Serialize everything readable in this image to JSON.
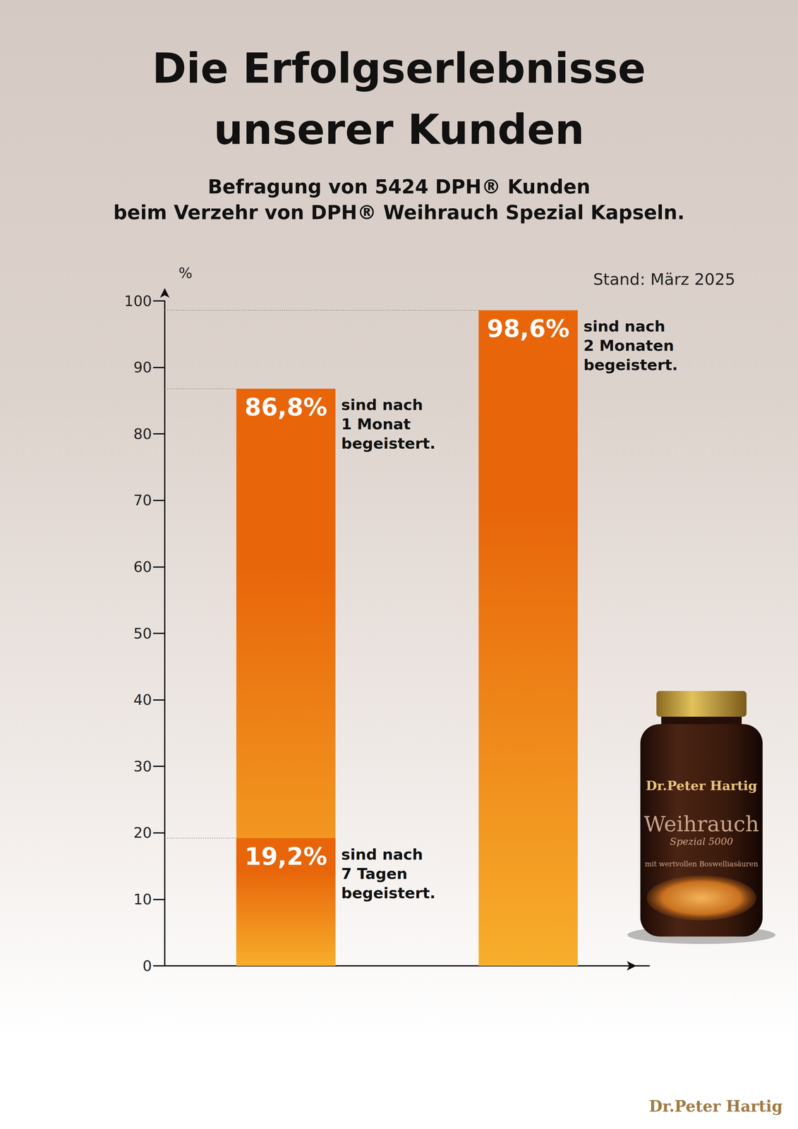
{
  "chart_data": {
    "type": "bar",
    "title": [
      "Die Erfolgserlebnisse",
      "unserer Kunden"
    ],
    "subtitle": [
      "Befragung von 5424 DPH® Kunden",
      "beim Verzehr von DPH® Weihrauch Spezial Kapseln."
    ],
    "y_label": "%",
    "note": "Stand: März 2025",
    "categories": [
      null,
      null
    ],
    "series": [
      {
        "color": "#e8650a",
        "values": [
          86.8,
          98.6
        ],
        "value_labels": [
          "86,8%",
          "98,6%"
        ],
        "annotations": [
          [
            "sind nach",
            "1 Monat",
            "begeistert."
          ],
          [
            "sind nach",
            "2 Monaten",
            "begeistert."
          ]
        ]
      },
      {
        "color": "#e8650a",
        "values": [
          19.2,
          null
        ],
        "value_labels": [
          "19,2%",
          null
        ],
        "annotations": [
          [
            "sind nach",
            "7 Tagen",
            "begeistert."
          ],
          null
        ]
      }
    ],
    "ylim": [
      0,
      100
    ],
    "yticks": [
      0,
      10,
      20,
      30,
      40,
      50,
      60,
      70,
      80,
      90,
      100
    ],
    "grid": false,
    "data_labels": true,
    "tick_labels": "y"
  },
  "product": {
    "brand": "Dr.Peter Hartig",
    "name": "Weihrauch",
    "variant": "Spezial 5000",
    "claim": "mit wertvollen Boswelliasäuren"
  },
  "logo": "Dr.Peter Hartig"
}
